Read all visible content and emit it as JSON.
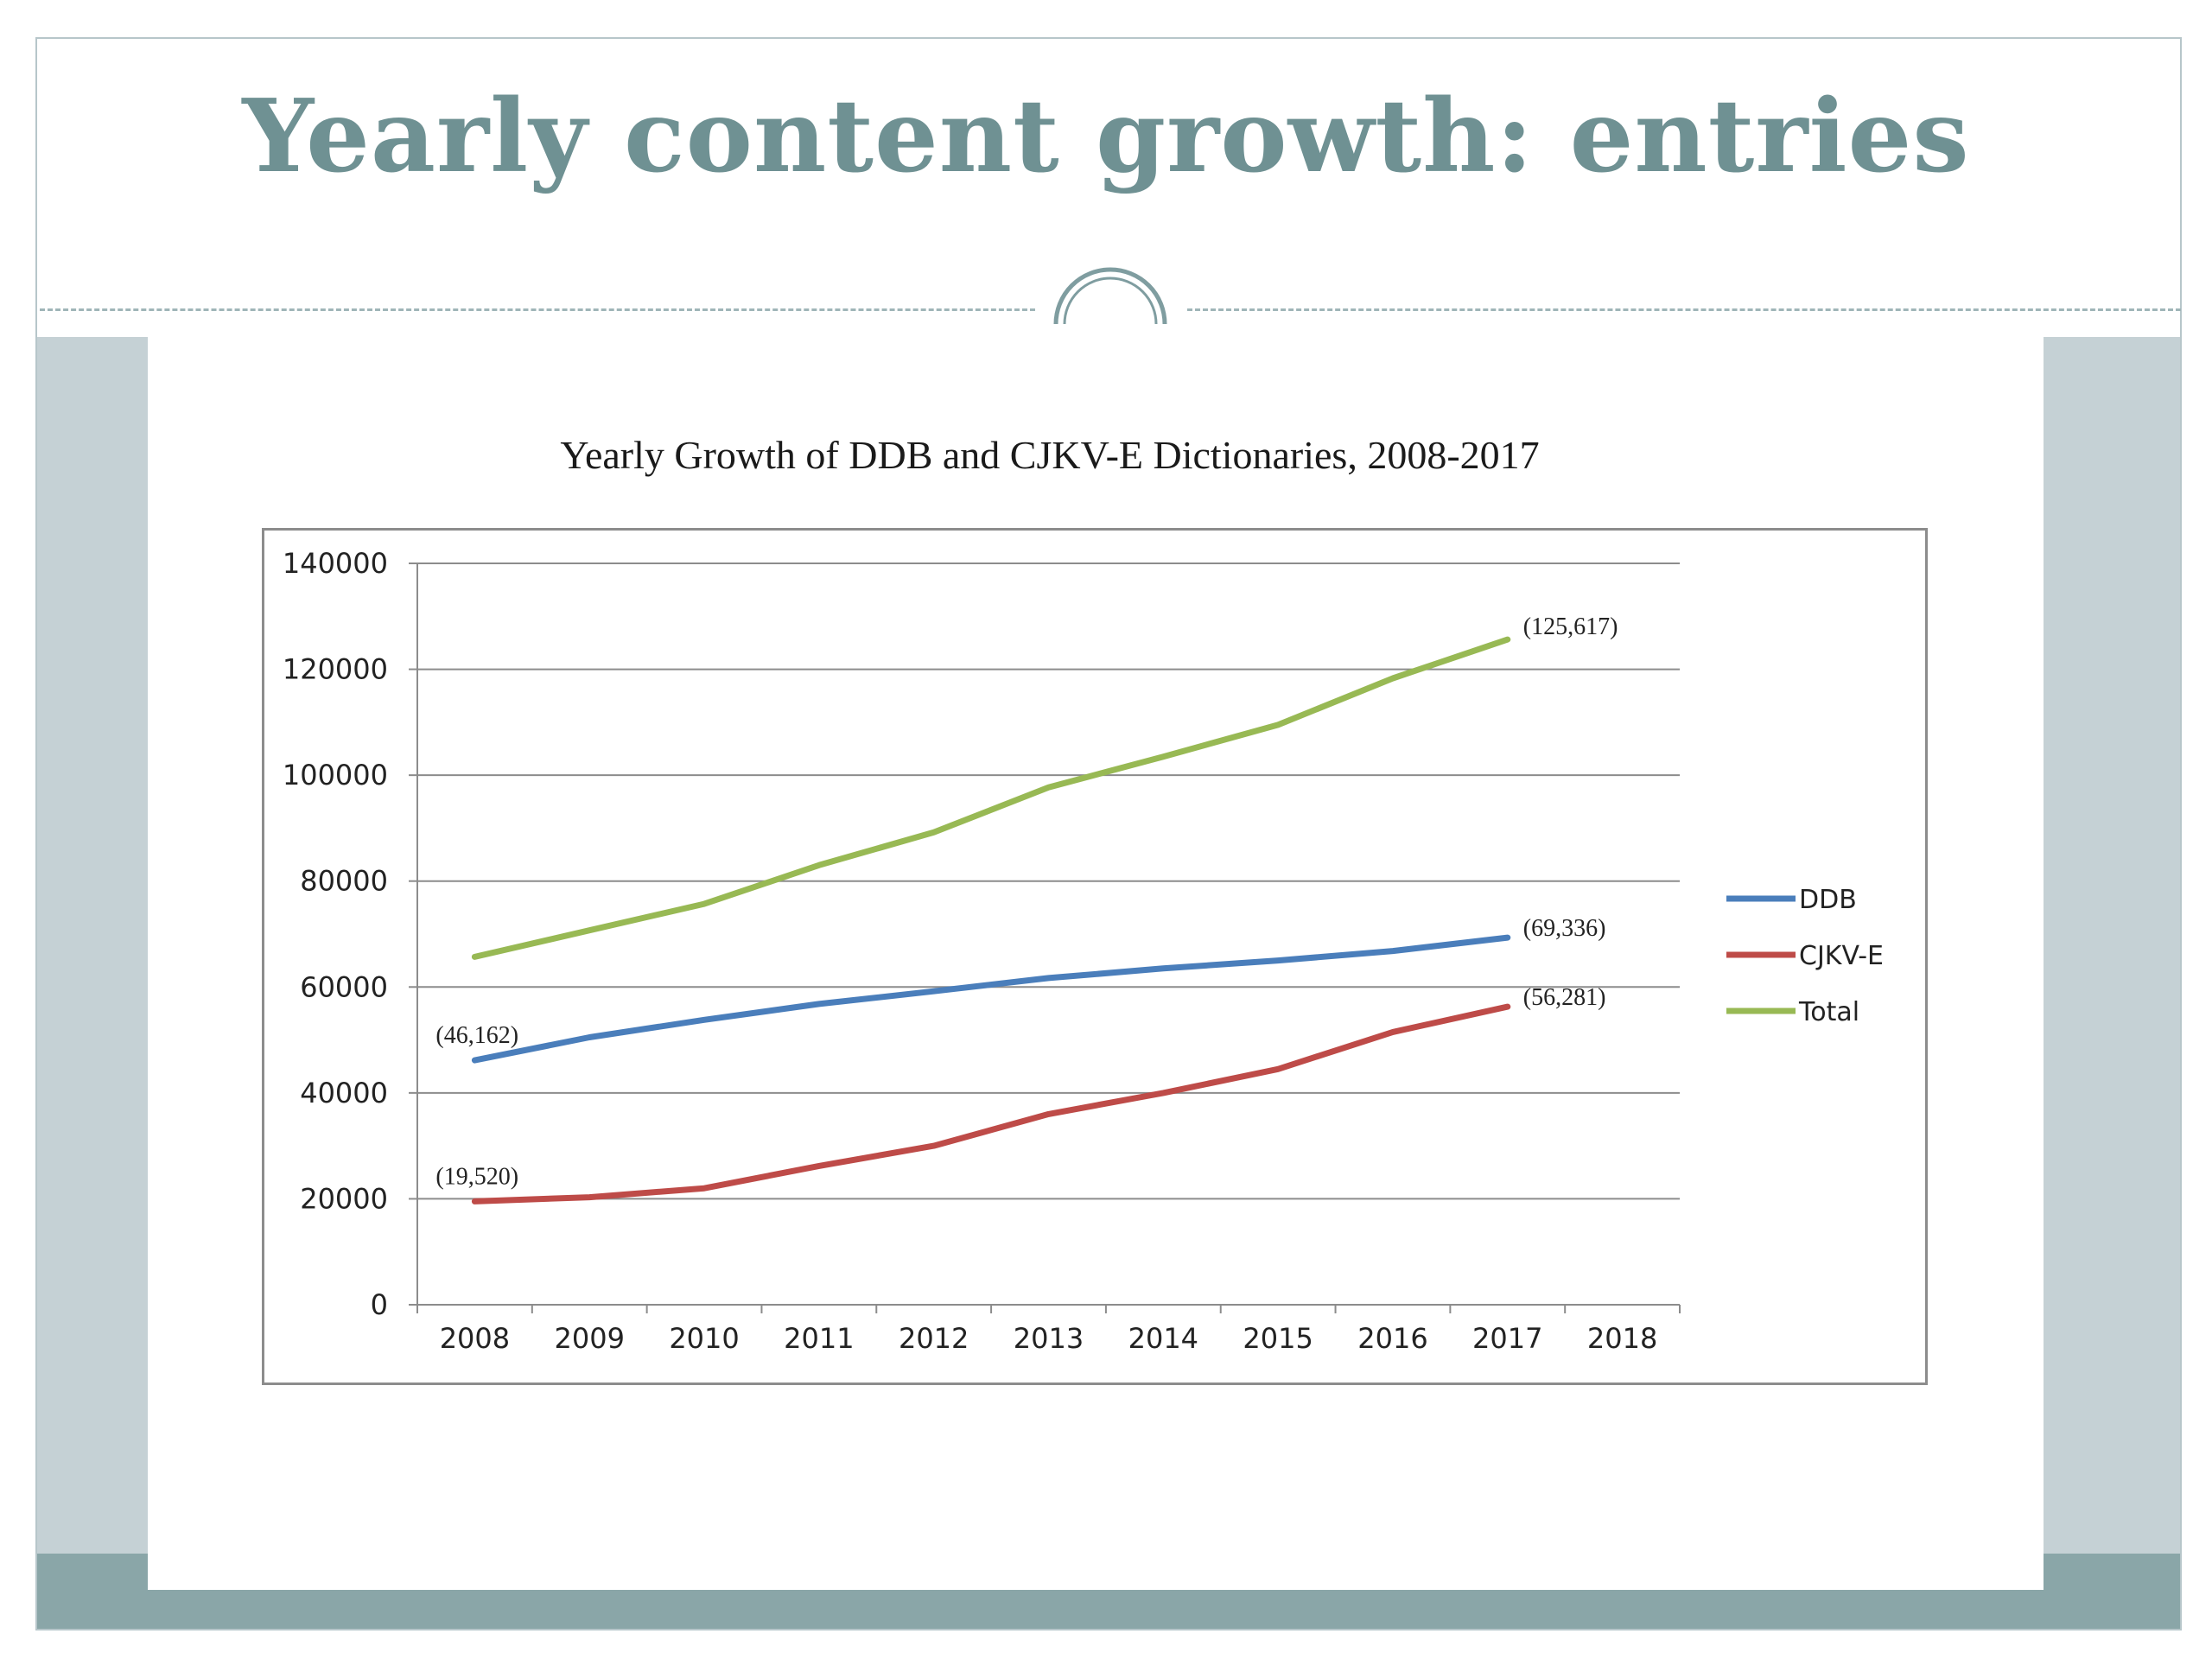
{
  "slide": {
    "title": "Yearly content growth: entries"
  },
  "chart_data": {
    "type": "line",
    "title": "Yearly Growth of DDB and CJKV-E Dictionaries, 2008-2017",
    "xlabel": "",
    "ylabel": "",
    "x_ticks": [
      "2008",
      "2009",
      "2010",
      "2011",
      "2012",
      "2013",
      "2014",
      "2015",
      "2016",
      "2017",
      "2018"
    ],
    "ylim": [
      0,
      140000
    ],
    "y_ticks": [
      0,
      20000,
      40000,
      60000,
      80000,
      100000,
      120000,
      140000
    ],
    "grid": true,
    "legend_position": "right",
    "series": [
      {
        "name": "DDB",
        "color": "#4a7ebb",
        "x": [
          "2008",
          "2009",
          "2010",
          "2011",
          "2012",
          "2013",
          "2014",
          "2015",
          "2016",
          "2017"
        ],
        "values": [
          46162,
          50500,
          53800,
          56800,
          59200,
          61700,
          63500,
          65000,
          66800,
          69336
        ]
      },
      {
        "name": "CJKV-E",
        "color": "#be4b48",
        "x": [
          "2008",
          "2009",
          "2010",
          "2011",
          "2012",
          "2013",
          "2014",
          "2015",
          "2016",
          "2017"
        ],
        "values": [
          19520,
          20300,
          22000,
          26200,
          30000,
          36000,
          40000,
          44500,
          51500,
          56281
        ]
      },
      {
        "name": "Total",
        "color": "#98b954",
        "x": [
          "2008",
          "2009",
          "2010",
          "2011",
          "2012",
          "2013",
          "2014",
          "2015",
          "2016",
          "2017"
        ],
        "values": [
          65700,
          70700,
          75700,
          83000,
          89200,
          97700,
          103500,
          109500,
          118300,
          125617
        ]
      }
    ],
    "annotations": [
      {
        "text": "(46,162)",
        "series": "DDB",
        "x": "2008"
      },
      {
        "text": "(19,520)",
        "series": "CJKV-E",
        "x": "2008"
      },
      {
        "text": "(125,617)",
        "series": "Total",
        "x": "2017"
      },
      {
        "text": "(69,336)",
        "series": "DDB",
        "x": "2017"
      },
      {
        "text": "(56,281)",
        "series": "CJKV-E",
        "x": "2017"
      }
    ]
  }
}
